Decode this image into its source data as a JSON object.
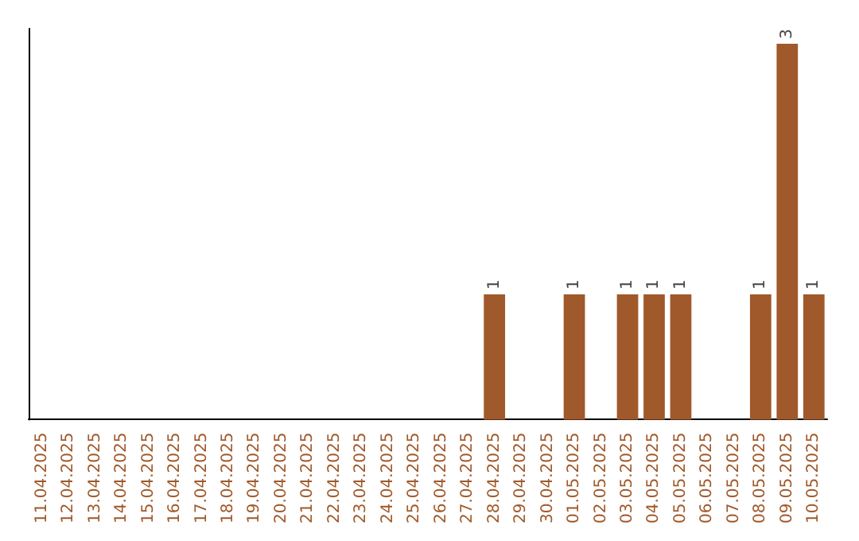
{
  "chart_data": {
    "type": "bar",
    "categories": [
      "11.04.2025",
      "12.04.2025",
      "13.04.2025",
      "14.04.2025",
      "15.04.2025",
      "16.04.2025",
      "17.04.2025",
      "18.04.2025",
      "19.04.2025",
      "20.04.2025",
      "21.04.2025",
      "22.04.2025",
      "23.04.2025",
      "24.04.2025",
      "25.04.2025",
      "26.04.2025",
      "27.04.2025",
      "28.04.2025",
      "29.04.2025",
      "30.04.2025",
      "01.05.2025",
      "02.05.2025",
      "03.05.2025",
      "04.05.2025",
      "05.05.2025",
      "06.05.2025",
      "07.05.2025",
      "08.05.2025",
      "09.05.2025",
      "10.05.2025"
    ],
    "values": [
      null,
      null,
      null,
      null,
      null,
      null,
      null,
      null,
      null,
      null,
      null,
      null,
      null,
      null,
      null,
      null,
      null,
      1,
      null,
      null,
      1,
      null,
      1,
      1,
      1,
      null,
      null,
      1,
      3,
      1
    ],
    "value_labels": [
      null,
      null,
      null,
      null,
      null,
      null,
      null,
      null,
      null,
      null,
      null,
      null,
      null,
      null,
      null,
      null,
      null,
      "1",
      null,
      null,
      "1",
      null,
      "1",
      "1",
      "1",
      null,
      null,
      "1",
      "3",
      "1"
    ],
    "color": "#a0592a",
    "grid": false,
    "tick_labels": "x"
  }
}
